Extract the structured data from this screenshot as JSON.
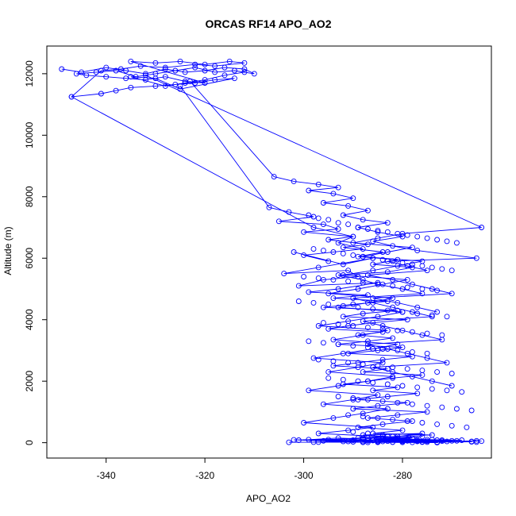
{
  "chart_data": {
    "type": "line",
    "title": "ORCAS RF14 APO_AO2",
    "xlabel": "APO_AO2",
    "ylabel": "Altitude (m)",
    "xlim": [
      -352,
      -262
    ],
    "ylim": [
      -500,
      12900
    ],
    "x_ticks": [
      -340,
      -320,
      -300,
      -280
    ],
    "y_ticks": [
      0,
      2000,
      4000,
      6000,
      8000,
      10000,
      12000
    ],
    "grid": false,
    "legend": "none",
    "marker": "open-circle",
    "color": "#0000ff",
    "series": [
      {
        "x": [
          -349,
          -345,
          -340,
          -336,
          -332,
          -328,
          -324,
          -320,
          -316,
          -312,
          -310,
          -314,
          -318,
          -322,
          -326,
          -330,
          -334,
          -338,
          -342,
          -346,
          -344,
          -340,
          -336,
          -332,
          -328,
          -324,
          -320,
          -335,
          -330,
          -325,
          -320,
          -315,
          -312,
          -318,
          -322,
          -328,
          -333,
          -337,
          -341,
          -347,
          -341,
          -338,
          -335,
          -330,
          -326,
          -322,
          -318,
          -314,
          -325,
          -330,
          -335,
          -328,
          -324,
          -320,
          -316,
          -312
        ],
        "y": [
          12150,
          12050,
          12200,
          12100,
          12000,
          12150,
          12050,
          12100,
          12200,
          12150,
          12000,
          12100,
          12050,
          12200,
          12100,
          12000,
          11900,
          12100,
          12050,
          12000,
          11950,
          11900,
          11850,
          11800,
          11900,
          11750,
          11700,
          12400,
          12350,
          12400,
          12300,
          12400,
          12350,
          12250,
          12300,
          12200,
          12250,
          12150,
          12100,
          11250,
          11350,
          11450,
          11550,
          11600,
          11650,
          11700,
          11800,
          11850,
          11500,
          11850,
          11900,
          11600,
          11700,
          11800,
          11950,
          12050
        ]
      },
      {
        "x": [
          -347,
          -298,
          -290,
          -293,
          -288,
          -300,
          -295,
          -302,
          -292,
          -286,
          -297,
          -304,
          -291,
          -289,
          -296,
          -301,
          -285,
          -293,
          -299,
          -287,
          -294,
          -283,
          -290,
          -296,
          -281,
          -288,
          -292,
          -279,
          -286,
          -291,
          -295,
          -284,
          -289,
          -282,
          -287,
          -293,
          -280,
          -285,
          -291,
          -278,
          -284,
          -289,
          -294,
          -283,
          -288,
          -276,
          -282,
          -287,
          -292,
          -281,
          -286,
          -277,
          -283,
          -289,
          -279,
          -285,
          -290,
          -275,
          -281,
          -287,
          -278,
          -284,
          -289,
          -280,
          -286,
          -274,
          -282,
          -288,
          -279,
          -284,
          -290,
          -277,
          -283,
          -288,
          -276,
          -282,
          -287,
          -273,
          -280,
          -286,
          -278,
          -283,
          -288,
          -276,
          -281,
          -287,
          -274,
          -280,
          -285,
          -277,
          -282,
          -288,
          -272,
          -279,
          -284,
          -276,
          -281,
          -286,
          -273,
          -279,
          -284,
          -275,
          -280,
          -285,
          -270,
          -277,
          -282,
          -268,
          -275,
          -280,
          -266,
          -273,
          -278,
          -265,
          -271,
          -276,
          -264
        ],
        "y": [
          11250,
          7000,
          6700,
          6500,
          6300,
          6100,
          5900,
          6200,
          5800,
          6000,
          5700,
          5500,
          5600,
          5400,
          5300,
          5100,
          5200,
          5000,
          4900,
          4800,
          4700,
          4600,
          4500,
          4400,
          4300,
          4200,
          4100,
          4000,
          3900,
          3800,
          3700,
          3600,
          3500,
          3400,
          3300,
          3200,
          3100,
          3000,
          2900,
          2800,
          2700,
          2600,
          2500,
          2400,
          2300,
          2200,
          2100,
          2000,
          1900,
          1800,
          1700,
          1600,
          1500,
          1400,
          1300,
          1200,
          1100,
          1000,
          900,
          800,
          700,
          600,
          500,
          400,
          300,
          250,
          200,
          150,
          120,
          100,
          80,
          60,
          50,
          40,
          30,
          20,
          10,
          0,
          50,
          100,
          150,
          200,
          250,
          300,
          200,
          150,
          100,
          80,
          60,
          40,
          20,
          10,
          50,
          100,
          150,
          200,
          150,
          100,
          80,
          60,
          40,
          20,
          10,
          30,
          60,
          90,
          120,
          80,
          50,
          40,
          30,
          20,
          10,
          60,
          40,
          20,
          50
        ]
      },
      {
        "x": [
          -325,
          -307,
          -303,
          -298,
          -305,
          -296,
          -293,
          -300,
          -290,
          -295,
          -287,
          -292,
          -284,
          -289,
          -281,
          -286,
          -278,
          -283,
          -293,
          -288,
          -285,
          -280,
          -276,
          -290,
          -286,
          -282,
          -278,
          -274,
          -288,
          -284,
          -280,
          -276,
          -272,
          -287,
          -283,
          -279,
          -275,
          -271,
          -286,
          -282,
          -278,
          -274,
          -270
        ],
        "y": [
          11600,
          7650,
          7500,
          7350,
          7200,
          7100,
          6950,
          6850,
          6700,
          6600,
          6450,
          6350,
          6200,
          6050,
          5950,
          5800,
          5700,
          5550,
          5450,
          5300,
          5150,
          5000,
          4850,
          4700,
          4550,
          4400,
          4250,
          4100,
          3950,
          3800,
          3650,
          3500,
          3350,
          3200,
          3050,
          2900,
          2750,
          2600,
          2450,
          2300,
          2150,
          2000,
          1850
        ]
      },
      {
        "x": [
          -323,
          -306,
          -302,
          -297,
          -293,
          -299,
          -294,
          -290,
          -296,
          -291,
          -287,
          -292,
          -288,
          -283,
          -289,
          -285,
          -280,
          -286,
          -282,
          -277,
          -265,
          -283,
          -279,
          -275,
          -287,
          -282,
          -278,
          -274,
          -270,
          -286,
          -281,
          -277,
          -273
        ],
        "y": [
          11750,
          8650,
          8500,
          8400,
          8300,
          8200,
          8100,
          7950,
          7800,
          7700,
          7550,
          7400,
          7250,
          7150,
          7000,
          6850,
          6700,
          6550,
          6400,
          6250,
          6000,
          5900,
          5750,
          5600,
          5450,
          5300,
          5150,
          5000,
          4850,
          4700,
          4550,
          4400,
          4250
        ]
      },
      {
        "x": [
          -332,
          -264,
          -280,
          -285,
          -290,
          -278,
          -283,
          -288,
          -276,
          -281,
          -286,
          -292,
          -279,
          -284,
          -289,
          -295,
          -282,
          -287,
          -293,
          -280,
          -285,
          -291,
          -297,
          -283,
          -288,
          -294,
          -281,
          -286,
          -292,
          -298,
          -284,
          -289,
          -295,
          -282,
          -287,
          -293,
          -299,
          -285,
          -290,
          -296,
          -283,
          -288,
          -294,
          -300,
          -286,
          -291,
          -297,
          -284,
          -289,
          -295,
          -301,
          -287,
          -292,
          -298,
          -285,
          -290,
          -296,
          -302,
          -288,
          -293,
          -299,
          -286,
          -291,
          -297,
          -303
        ],
        "y": [
          11950,
          7000,
          6800,
          6650,
          6500,
          6350,
          6200,
          6050,
          5900,
          5750,
          5600,
          5450,
          5300,
          5150,
          5000,
          4850,
          4700,
          4550,
          4400,
          4250,
          4100,
          3950,
          3800,
          3650,
          3500,
          3350,
          3200,
          3050,
          2900,
          2750,
          2600,
          2450,
          2300,
          2150,
          2000,
          1850,
          1700,
          1550,
          1400,
          1250,
          1100,
          950,
          800,
          650,
          500,
          400,
          300,
          200,
          150,
          100,
          80,
          60,
          40,
          20,
          10,
          30,
          60,
          90,
          120,
          150,
          100,
          70,
          40,
          20,
          10
        ]
      }
    ],
    "extra_points": {
      "x": [
        -299,
        -297,
        -295,
        -293,
        -291,
        -289,
        -287,
        -285,
        -283,
        -281,
        -279,
        -277,
        -275,
        -273,
        -271,
        -269,
        -298,
        -296,
        -294,
        -292,
        -290,
        -288,
        -286,
        -284,
        -282,
        -280,
        -278,
        -276,
        -274,
        -272,
        -270,
        -300,
        -297,
        -294,
        -291,
        -288,
        -285,
        -282,
        -279,
        -276,
        -273,
        -301,
        -298,
        -295,
        -292,
        -289,
        -286,
        -283,
        -280,
        -277,
        -274,
        -271,
        -296,
        -293,
        -290,
        -287,
        -284,
        -281,
        -278,
        -275,
        -272,
        -299,
        -296,
        -293,
        -290,
        -287,
        -284,
        -281,
        -278,
        -275,
        -297,
        -294,
        -291,
        -288,
        -285,
        -282,
        -279,
        -276,
        -273,
        -270,
        -295,
        -292,
        -289,
        -286,
        -283,
        -280,
        -277,
        -274,
        -271,
        -268,
        -293,
        -290,
        -287,
        -284,
        -281,
        -278,
        -275,
        -272,
        -269,
        -266,
        -291,
        -288,
        -285,
        -282,
        -279,
        -276,
        -273,
        -270,
        -267,
        -290,
        -287,
        -284,
        -281,
        -278,
        -275,
        -272,
        -269,
        -266,
        -265
      ],
      "y": [
        7400,
        7300,
        7250,
        7150,
        7100,
        7000,
        6950,
        6900,
        6850,
        6800,
        6750,
        6700,
        6650,
        6600,
        6550,
        6500,
        6300,
        6250,
        6200,
        6150,
        6100,
        6050,
        6000,
        5950,
        5900,
        5850,
        5800,
        5750,
        5700,
        5650,
        5600,
        5400,
        5350,
        5300,
        5250,
        5200,
        5150,
        5100,
        5050,
        5000,
        4950,
        4600,
        4550,
        4500,
        4450,
        4400,
        4350,
        4300,
        4250,
        4200,
        4150,
        4100,
        3900,
        3850,
        3800,
        3750,
        3700,
        3650,
        3600,
        3550,
        3500,
        3300,
        3250,
        3200,
        3150,
        3100,
        3050,
        3000,
        2950,
        2900,
        2700,
        2650,
        2600,
        2550,
        2500,
        2450,
        2400,
        2350,
        2300,
        2250,
        2100,
        2050,
        2000,
        1950,
        1900,
        1850,
        1800,
        1750,
        1700,
        1650,
        1500,
        1450,
        1400,
        1350,
        1300,
        1250,
        1200,
        1150,
        1100,
        1050,
        900,
        850,
        800,
        750,
        700,
        650,
        600,
        550,
        500,
        350,
        300,
        250,
        200,
        150,
        100,
        80,
        60,
        40,
        20
      ]
    }
  }
}
